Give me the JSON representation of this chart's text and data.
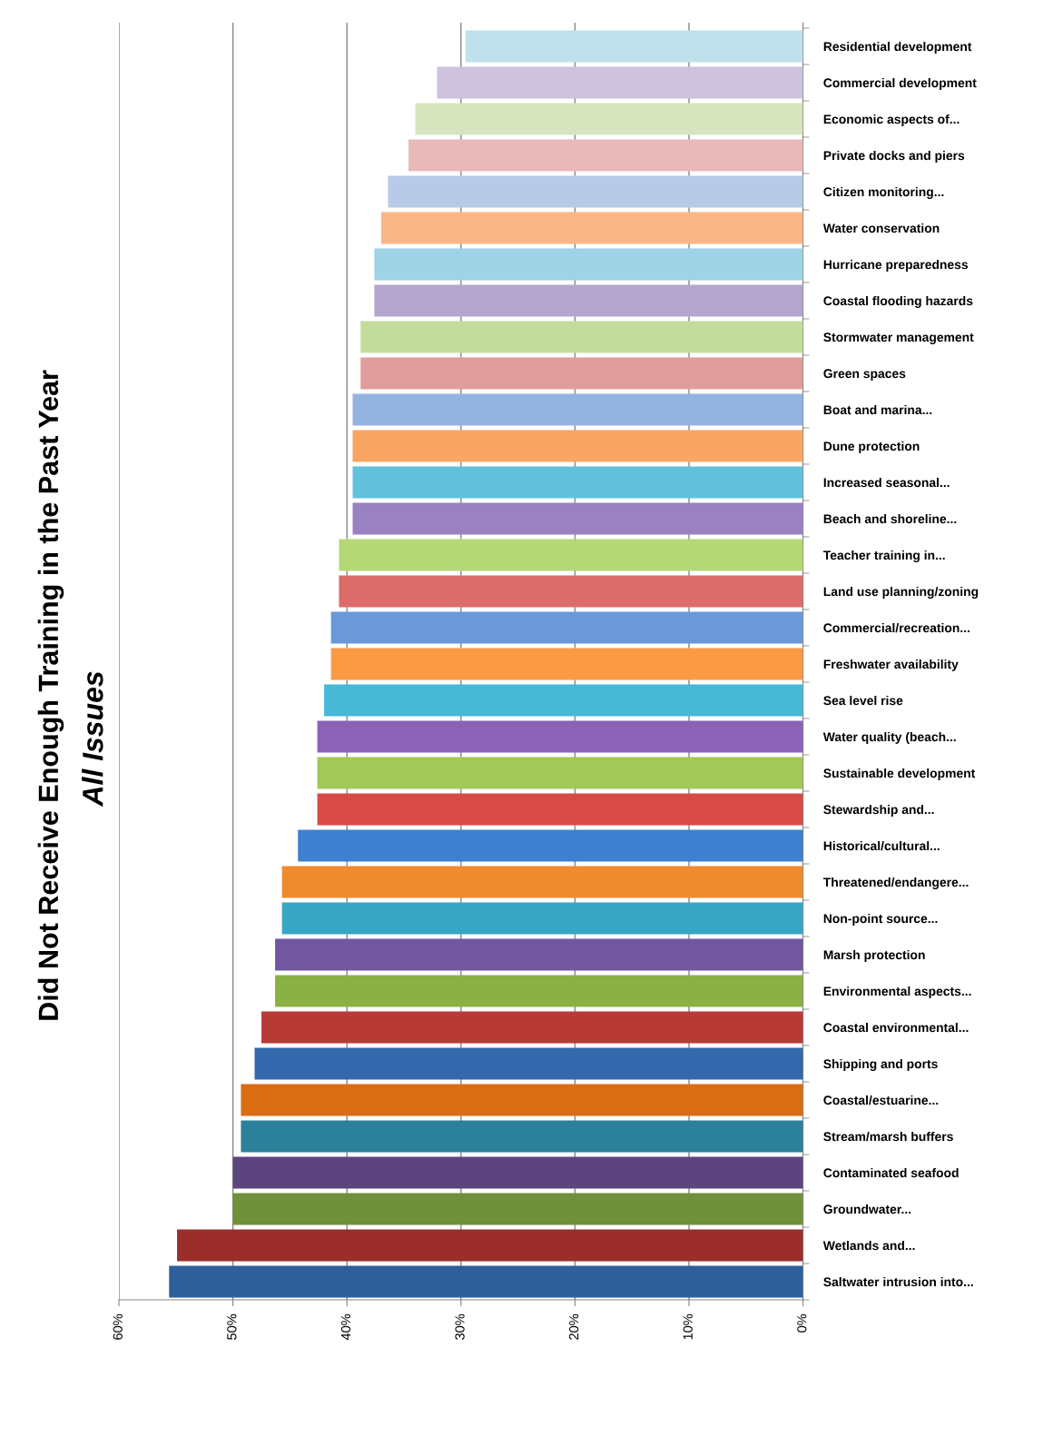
{
  "chart_data": {
    "type": "bar",
    "orientation": "horizontal",
    "title": "Did Not Receive Enough Training in the Past Year",
    "subtitle": "All Issues",
    "categories": [
      "Residential development",
      "Commercial development",
      "Economic aspects of...",
      "Private docks and piers",
      "Citizen monitoring...",
      "Water conservation",
      "Hurricane preparedness",
      "Coastal flooding hazards",
      "Stormwater management",
      "Green spaces",
      "Boat and marina...",
      "Dune protection",
      "Increased seasonal...",
      "Beach and shoreline...",
      "Teacher training in...",
      "Land use planning/zoning",
      "Commercial/recreation...",
      "Freshwater availability",
      "Sea level rise",
      "Water quality (beach...",
      "Sustainable development",
      "Stewardship and...",
      "Historical/cultural...",
      "Threatened/endangere...",
      "Non-point source...",
      "Marsh protection",
      "Environmental aspects...",
      "Coastal environmental...",
      "Shipping and ports",
      "Coastal/estuarine...",
      "Stream/marsh buffers",
      "Contaminated seafood",
      "Groundwater...",
      "Wetlands and...",
      "Saltwater intrusion into..."
    ],
    "values": [
      29.6,
      32.1,
      34.0,
      34.6,
      36.4,
      37.0,
      37.6,
      37.6,
      38.8,
      38.8,
      39.5,
      39.5,
      39.5,
      39.5,
      40.7,
      40.7,
      41.4,
      41.4,
      42.0,
      42.6,
      42.6,
      42.6,
      44.3,
      45.7,
      45.7,
      46.3,
      46.3,
      47.5,
      48.1,
      49.3,
      49.3,
      50.0,
      50.0,
      54.9,
      55.6
    ],
    "colors": [
      "#bfe1ec",
      "#cdc3de",
      "#d6e5bd",
      "#e8b9b8",
      "#b7cbe8",
      "#fbb688",
      "#9ed4e6",
      "#b5a6cf",
      "#c3dc9b",
      "#e09d9c",
      "#94b4e0",
      "#f9a563",
      "#62c2dc",
      "#9a82c2",
      "#b5d776",
      "#dc6c6a",
      "#6a98d8",
      "#fb9a45",
      "#47b8d6",
      "#8a62b8",
      "#a2c858",
      "#d84a46",
      "#3f7fcf",
      "#f08a2e",
      "#37a6c4",
      "#7156a0",
      "#8bb043",
      "#b83a37",
      "#3468ad",
      "#d96d14",
      "#2b8199",
      "#5c4480",
      "#71903a",
      "#9b2d2a",
      "#2e5f9a"
    ],
    "xlim": [
      60,
      0
    ],
    "xticks": [
      {
        "value": 0,
        "label": "0%"
      },
      {
        "value": 10,
        "label": "10%"
      },
      {
        "value": 20,
        "label": "20%"
      },
      {
        "value": 30,
        "label": "30%"
      },
      {
        "value": 40,
        "label": "40%"
      },
      {
        "value": 50,
        "label": "50%"
      },
      {
        "value": 60,
        "label": "60%"
      }
    ],
    "grid": "x"
  }
}
